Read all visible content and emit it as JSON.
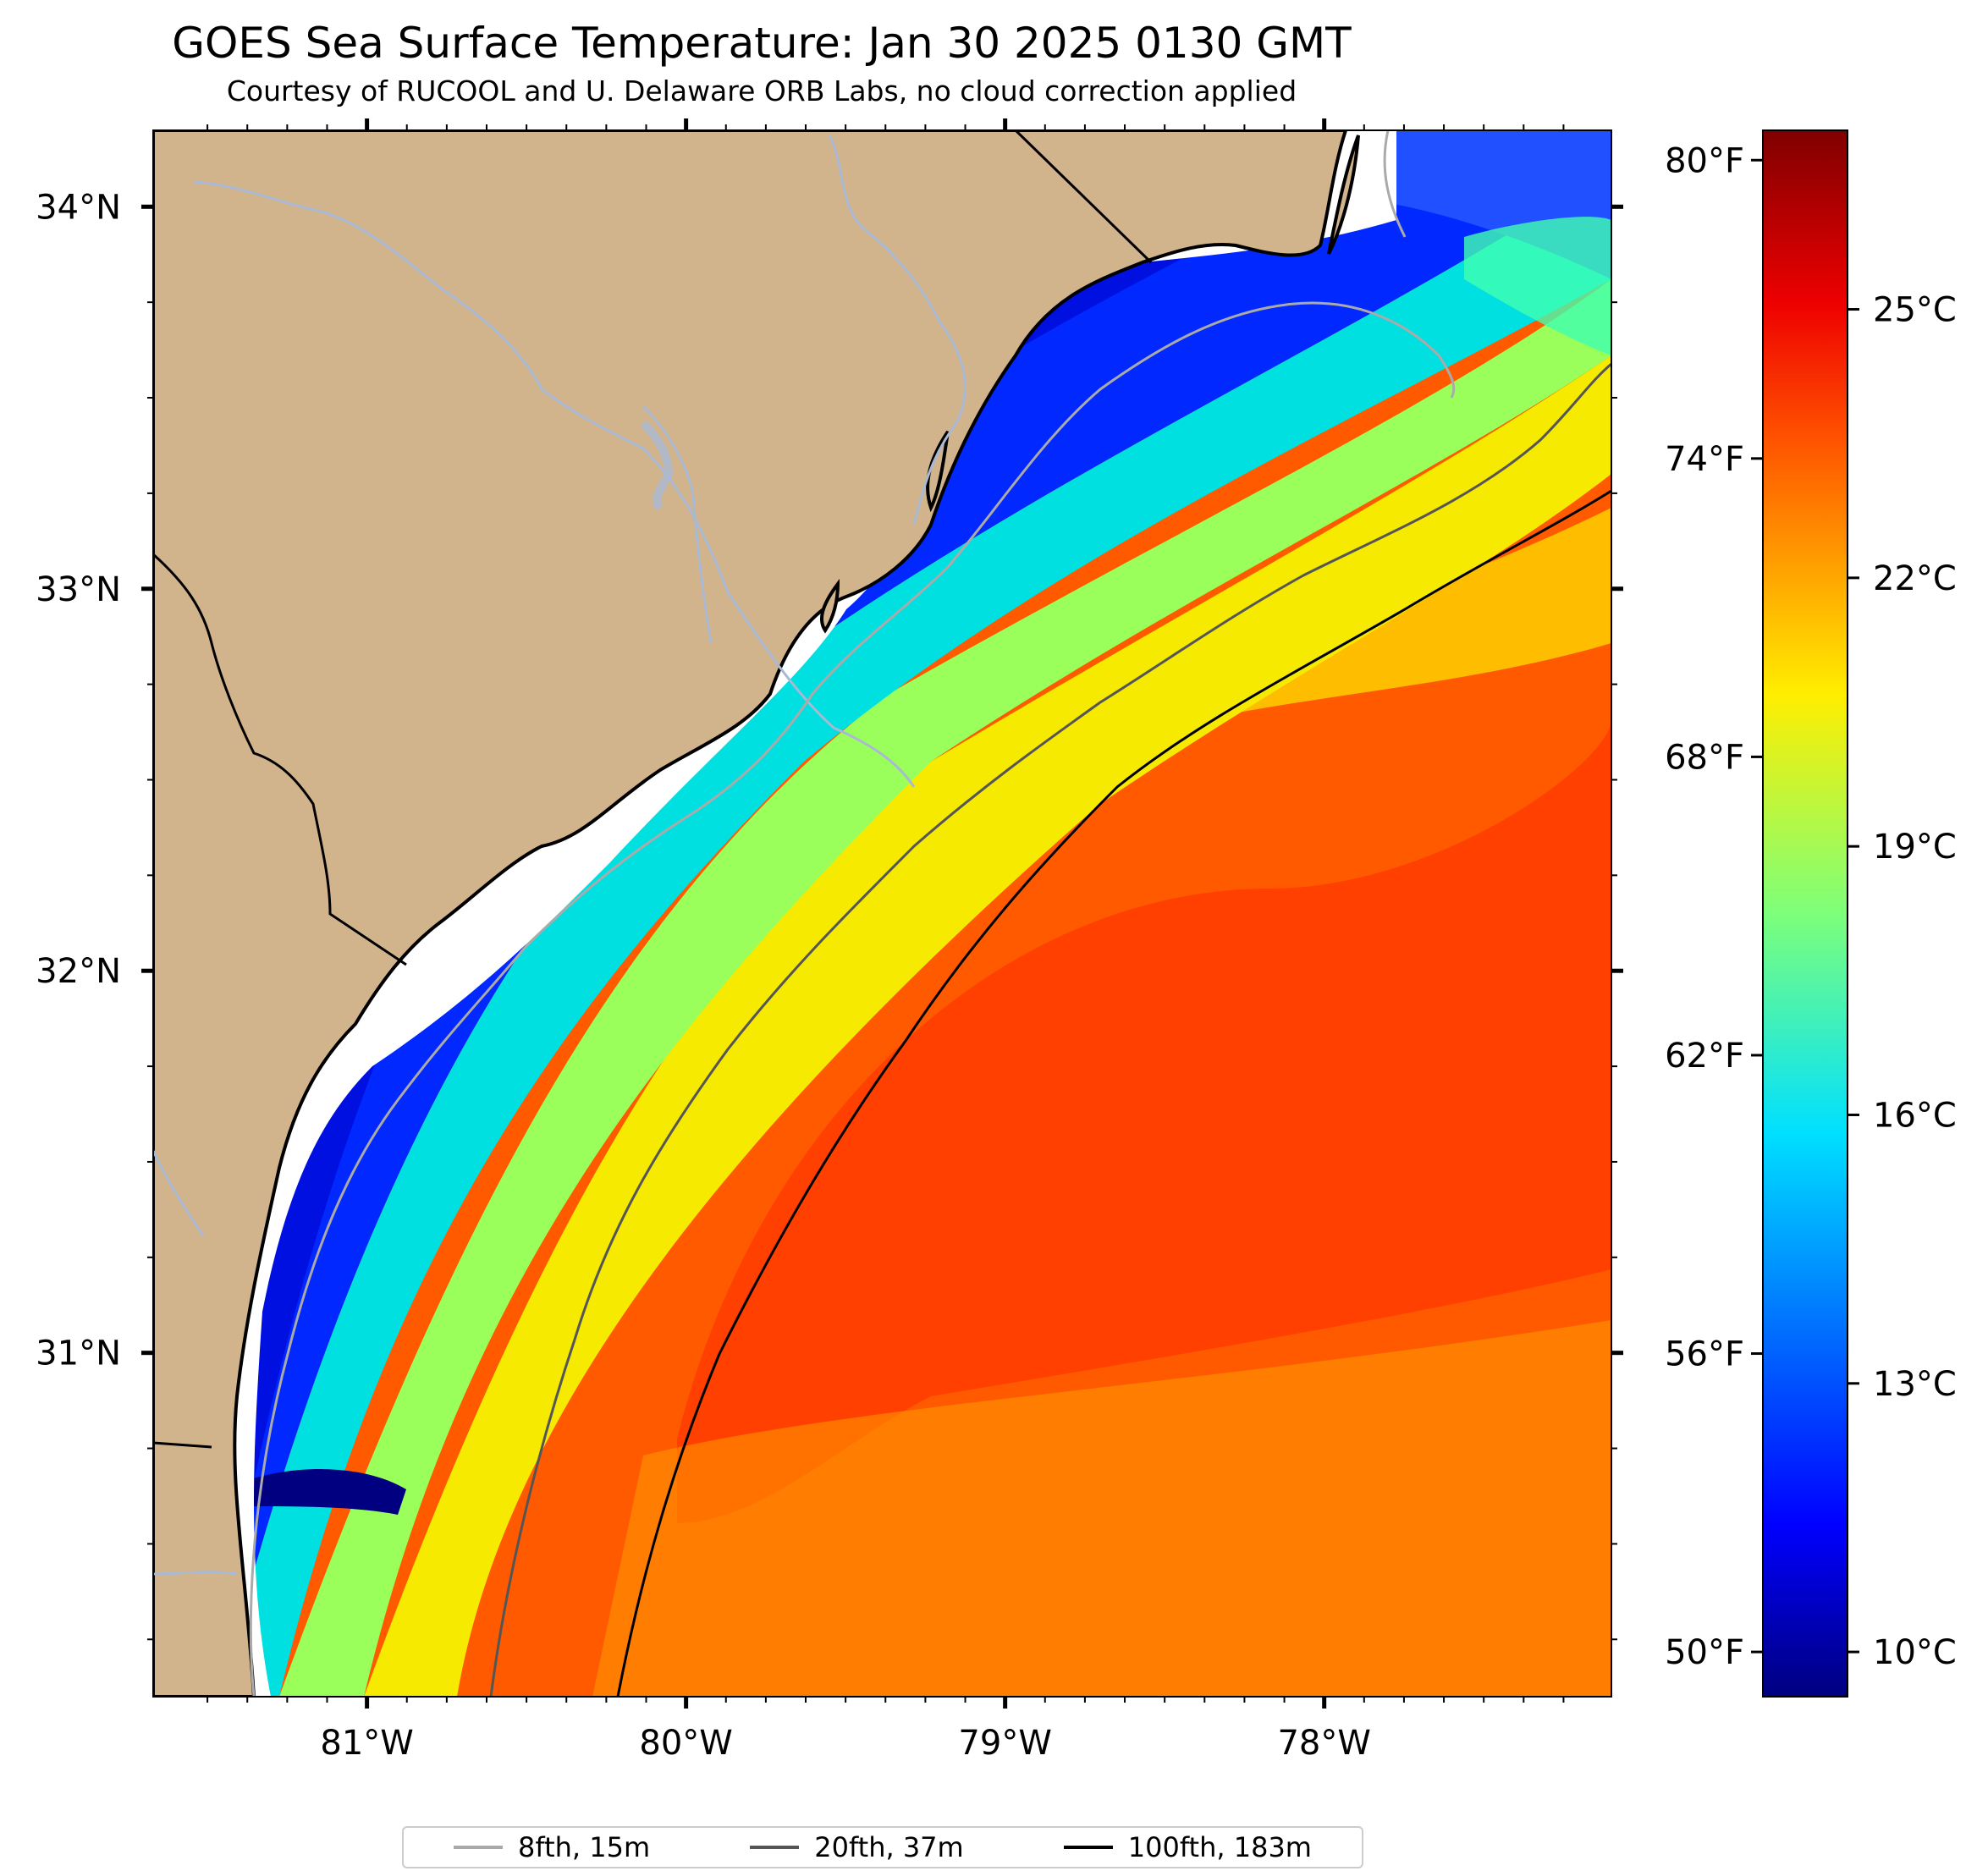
{
  "title": "GOES Sea Surface Temperature: Jan 30 2025 0130 GMT",
  "subtitle": "Courtesy of RUCOOL and U. Delaware ORB Labs, no cloud correction applied",
  "map": {
    "region": "Southeast US Atlantic coast (Georgia / South Carolina)",
    "lon_range": [
      -81.67,
      -77.1
    ],
    "lat_range": [
      30.1,
      34.2
    ],
    "lon_ticks": [
      {
        "value": -81,
        "label": "81°W"
      },
      {
        "value": -80,
        "label": "80°W"
      },
      {
        "value": -79,
        "label": "79°W"
      },
      {
        "value": -78,
        "label": "78°W"
      }
    ],
    "lat_ticks": [
      {
        "value": 34,
        "label": "34°N"
      },
      {
        "value": 33,
        "label": "33°N"
      },
      {
        "value": 32,
        "label": "32°N"
      },
      {
        "value": 31,
        "label": "31°N"
      }
    ],
    "colors": {
      "land": "#d2b48c",
      "coastline": "#000000",
      "rivers": "#a9b9d4",
      "isobath_8fth": "#aaaaaa",
      "isobath_20fth": "#555555",
      "isobath_100fth": "#000000"
    }
  },
  "colorbar": {
    "colormap": "jet",
    "range_c": [
      9.5,
      27
    ],
    "celsius": [
      {
        "value": 10,
        "label": "10°C"
      },
      {
        "value": 13,
        "label": "13°C"
      },
      {
        "value": 16,
        "label": "16°C"
      },
      {
        "value": 19,
        "label": "19°C"
      },
      {
        "value": 22,
        "label": "22°C"
      },
      {
        "value": 25,
        "label": "25°C"
      }
    ],
    "fahrenheit": [
      {
        "value": 50,
        "label": "50°F"
      },
      {
        "value": 56,
        "label": "56°F"
      },
      {
        "value": 62,
        "label": "62°F"
      },
      {
        "value": 68,
        "label": "68°F"
      },
      {
        "value": 74,
        "label": "74°F"
      },
      {
        "value": 80,
        "label": "80°F"
      }
    ]
  },
  "legend": [
    {
      "label": "8fth, 15m",
      "color": "#aaaaaa"
    },
    {
      "label": "20fth, 37m",
      "color": "#555555"
    },
    {
      "label": "100fth, 183m",
      "color": "#000000"
    }
  ]
}
